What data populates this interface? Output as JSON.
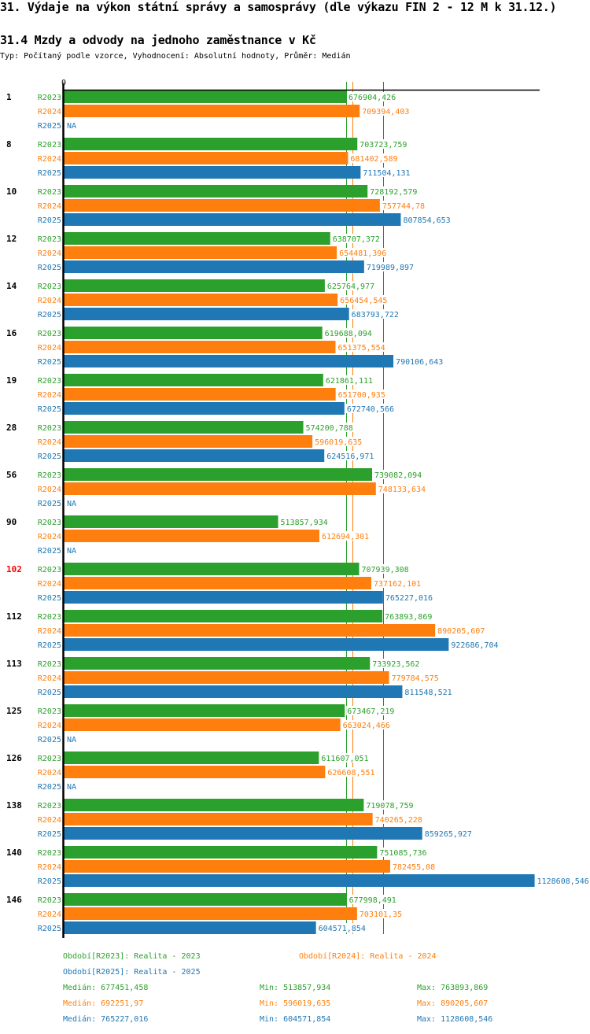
{
  "header": {
    "title": "31. Výdaje na výkon státní správy a samosprávy (dle výkazu FIN 2 - 12 M k 31.12.)",
    "subtitle": "31.4 Mzdy a odvody na jednoho zaměstnance v Kč",
    "meta": "Typ: Počítaný podle vzorce, Vyhodnocení: Absolutní hodnoty, Průměr: Medián"
  },
  "colors": {
    "R2023": "#2ca02c",
    "R2024": "#ff7f0e",
    "R2025": "#1f77b4",
    "highlight": "#ff0000",
    "axis": "#000000"
  },
  "chart_data": {
    "type": "bar",
    "orientation": "horizontal",
    "title": "31.4 Mzdy a odvody na jednoho zaměstnance v Kč",
    "axis_zero_label": "0",
    "xlim": [
      0,
      1128608.546
    ],
    "grid": false,
    "categories": [
      "1",
      "8",
      "10",
      "12",
      "14",
      "16",
      "19",
      "28",
      "56",
      "90",
      "102",
      "112",
      "113",
      "125",
      "126",
      "138",
      "140",
      "146"
    ],
    "highlighted_category": "102",
    "series": [
      {
        "name": "R2023",
        "values": [
          676904.426,
          703723.759,
          728192.579,
          638707.372,
          625764.977,
          619688.094,
          621861.111,
          574200.788,
          739082.094,
          513857.934,
          707939.308,
          763893.869,
          733923.562,
          673467.219,
          611607.051,
          719078.759,
          751085.736,
          677998.491
        ],
        "labels": [
          "676904,426",
          "703723,759",
          "728192,579",
          "638707,372",
          "625764,977",
          "619688,094",
          "621861,111",
          "574200,788",
          "739082,094",
          "513857,934",
          "707939,308",
          "763893,869",
          "733923,562",
          "673467,219",
          "611607,051",
          "719078,759",
          "751085,736",
          "677998,491"
        ]
      },
      {
        "name": "R2024",
        "values": [
          709394.403,
          681402.589,
          757744.78,
          654481.396,
          656454.545,
          651375.554,
          651700.935,
          596019.635,
          748133.634,
          612694.301,
          737162.101,
          890205.607,
          779784.575,
          663024.466,
          626608.551,
          740265.228,
          782455.08,
          703101.35
        ],
        "labels": [
          "709394,403",
          "681402,589",
          "757744,78",
          "654481,396",
          "656454,545",
          "651375,554",
          "651700,935",
          "596019,635",
          "748133,634",
          "612694,301",
          "737162,101",
          "890205,607",
          "779784,575",
          "663024,466",
          "626608,551",
          "740265,228",
          "782455,08",
          "703101,35"
        ]
      },
      {
        "name": "R2025",
        "values": [
          null,
          711504.131,
          807854.653,
          719989.897,
          683793.722,
          790106.643,
          672740.566,
          624516.971,
          null,
          null,
          765227.016,
          922686.704,
          811548.521,
          null,
          null,
          859265.927,
          1128608.546,
          604571.854
        ],
        "labels": [
          "NA",
          "711504,131",
          "807854,653",
          "719989,897",
          "683793,722",
          "790106,643",
          "672740,566",
          "624516,971",
          "NA",
          "NA",
          "765227,016",
          "922686,704",
          "811548,521",
          "NA",
          "NA",
          "859265,927",
          "1128608,546",
          "604571,854"
        ]
      }
    ],
    "medians": {
      "R2023": 677451.458,
      "R2024": 692251.97,
      "R2025": 765227.016
    }
  },
  "legend": {
    "periods": [
      {
        "key": "R2023",
        "text": "Období[R2023]: Realita - 2023"
      },
      {
        "key": "R2024",
        "text": "Období[R2024]: Realita - 2024"
      },
      {
        "key": "R2025",
        "text": "Období[R2025]: Realita - 2025"
      }
    ],
    "stats": [
      {
        "key": "R2023",
        "median": "Medián: 677451,458",
        "min": "Min: 513857,934",
        "max": "Max: 763893,869"
      },
      {
        "key": "R2024",
        "median": "Medián: 692251,97",
        "min": "Min: 596019,635",
        "max": "Max: 890205,607"
      },
      {
        "key": "R2025",
        "median": "Medián: 765227,016",
        "min": "Min: 604571,854",
        "max": "Max: 1128608,546"
      }
    ]
  }
}
